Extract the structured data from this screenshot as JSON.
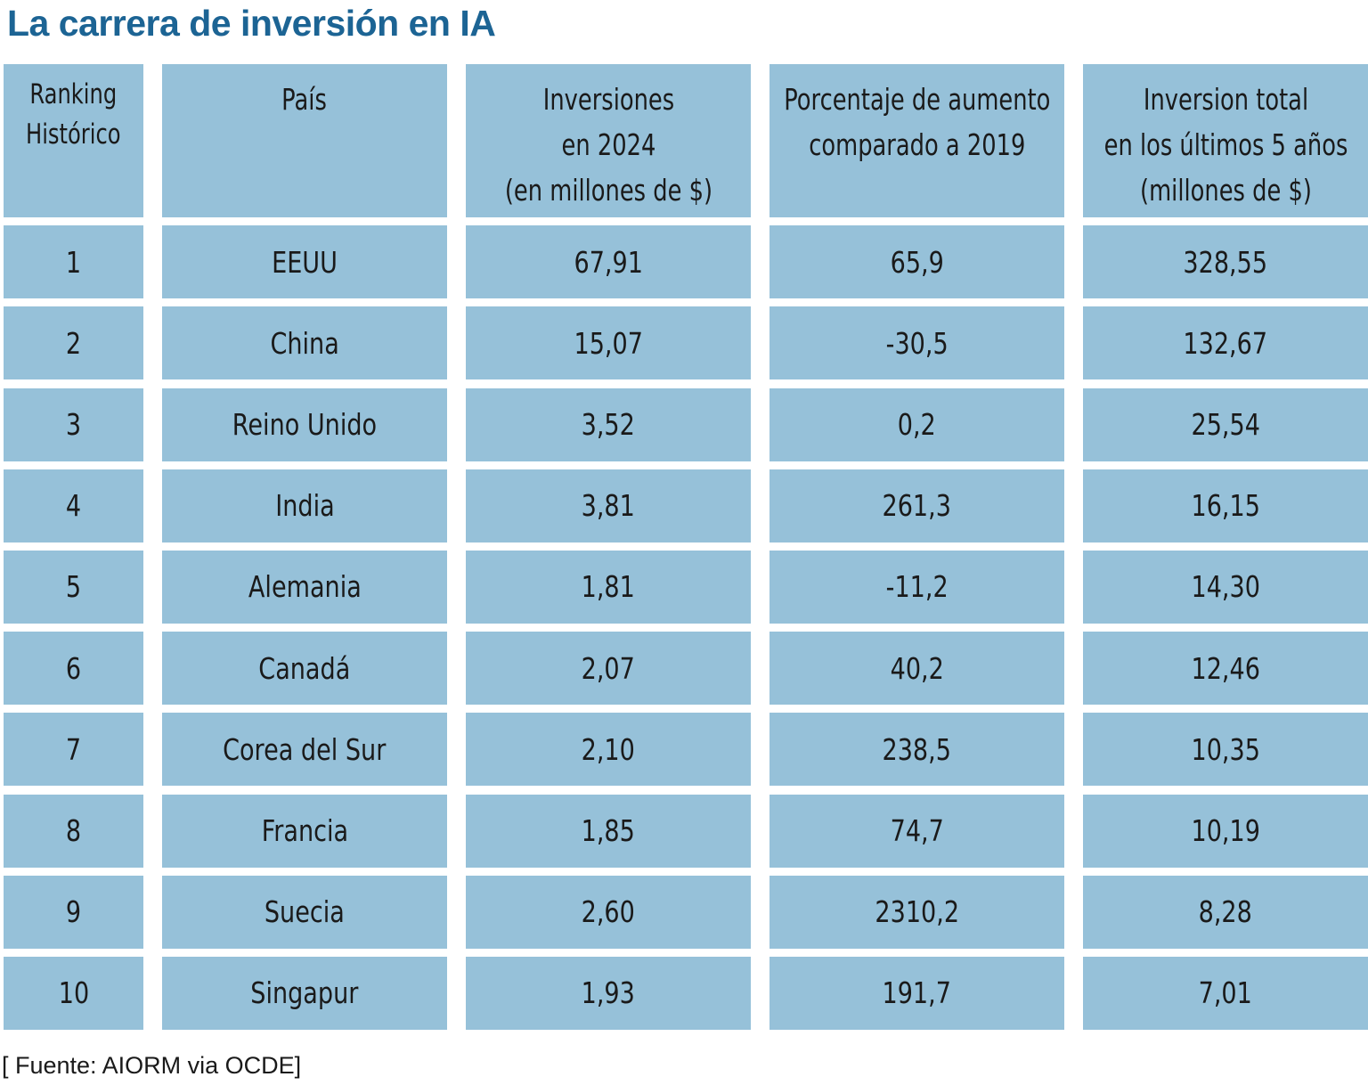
{
  "title": "La carrera de inversión en IA",
  "source": "[ Fuente: AIORM via OCDE]",
  "colors": {
    "title": "#1c6494",
    "cell": "#96c1d9",
    "text": "#1a1a1a"
  },
  "chart_data": {
    "type": "table",
    "title": "La carrera de inversión en IA",
    "columns": [
      [
        "Ranking",
        "Histórico"
      ],
      [
        "País"
      ],
      [
        "Inversiones",
        "en 2024",
        "(en millones de $)"
      ],
      [
        "Porcentaje de aumento",
        "comparado a 2019"
      ],
      [
        "Inversion total",
        "en los últimos 5 años",
        "(millones de $)"
      ]
    ],
    "rows": [
      [
        "1",
        "EEUU",
        "67,91",
        "65,9",
        "328,55"
      ],
      [
        "2",
        "China",
        "15,07",
        "-30,5",
        "132,67"
      ],
      [
        "3",
        "Reino Unido",
        "3,52",
        "0,2",
        "25,54"
      ],
      [
        "4",
        "India",
        "3,81",
        "261,3",
        "16,15"
      ],
      [
        "5",
        "Alemania",
        "1,81",
        "-11,2",
        "14,30"
      ],
      [
        "6",
        "Canadá",
        "2,07",
        "40,2",
        "12,46"
      ],
      [
        "7",
        "Corea del Sur",
        "2,10",
        "238,5",
        "10,35"
      ],
      [
        "8",
        "Francia",
        "1,85",
        "74,7",
        "10,19"
      ],
      [
        "9",
        "Suecia",
        "2,60",
        "2310,2",
        "8,28"
      ],
      [
        "10",
        "Singapur",
        "1,93",
        "191,7",
        "7,01"
      ]
    ]
  }
}
